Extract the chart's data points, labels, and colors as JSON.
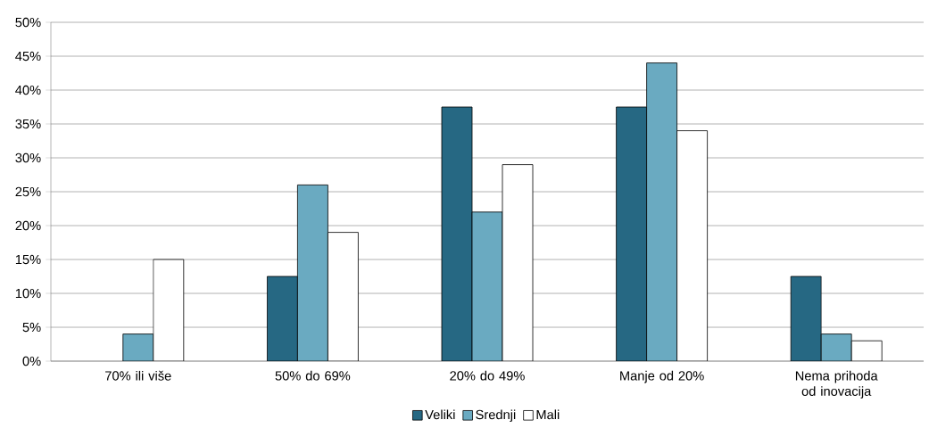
{
  "chart_data": {
    "type": "bar",
    "categories": [
      "70% ili više",
      "50% do 69%",
      "20% do 49%",
      "Manje od 20%",
      "Nema prihoda od inovacija"
    ],
    "series": [
      {
        "name": "Veliki",
        "color": "#266883",
        "values": [
          null,
          12.5,
          37.5,
          37.5,
          12.5
        ]
      },
      {
        "name": "Srednji",
        "color": "#6aaac1",
        "values": [
          4,
          26,
          22,
          44,
          4
        ]
      },
      {
        "name": "Mali",
        "color": "#ffffff",
        "values": [
          15,
          19,
          29,
          34,
          3
        ]
      }
    ],
    "ylim": [
      0,
      50
    ],
    "yticks": [
      {
        "value": 0,
        "label": "0%"
      },
      {
        "value": 5,
        "label": "5%"
      },
      {
        "value": 10,
        "label": "10%"
      },
      {
        "value": 15,
        "label": "15%"
      },
      {
        "value": 20,
        "label": "20%"
      },
      {
        "value": 25,
        "label": "25%"
      },
      {
        "value": 30,
        "label": "30%"
      },
      {
        "value": 35,
        "label": "35%"
      },
      {
        "value": 40,
        "label": "40%"
      },
      {
        "value": 45,
        "label": "45%"
      },
      {
        "value": 50,
        "label": "50%"
      }
    ],
    "grid": "y",
    "legend": "bottom"
  }
}
